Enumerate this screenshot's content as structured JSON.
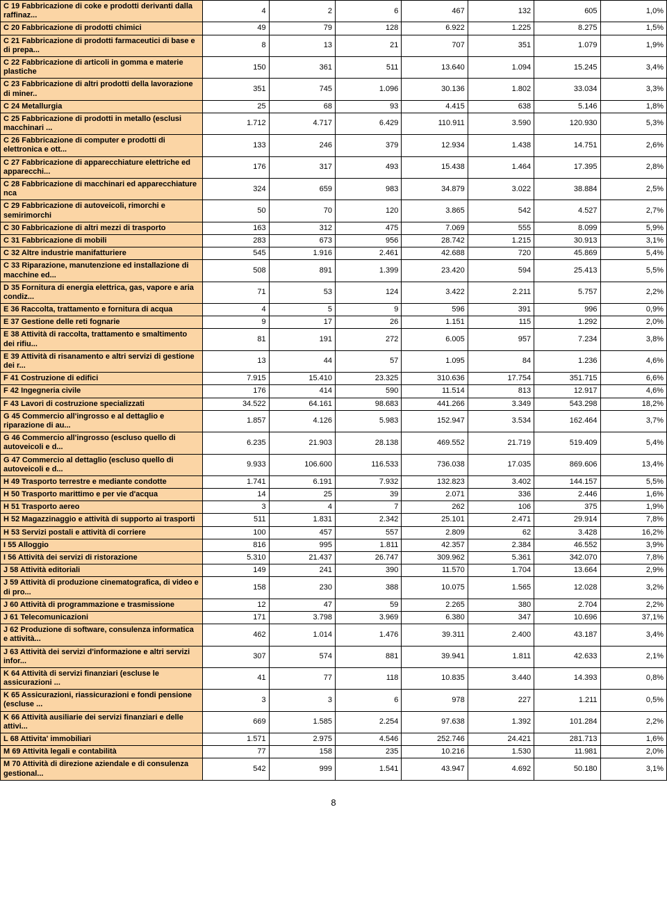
{
  "footer": "8",
  "colors": {
    "label_bg": "#fbd5a5",
    "border": "#000000",
    "text": "#000000"
  },
  "structure": {
    "type": "table",
    "columns": 8,
    "label_col": 0
  },
  "rows": [
    {
      "label": "C 19 Fabbricazione di coke e prodotti derivanti dalla raffinaz...",
      "v": [
        "4",
        "2",
        "6",
        "467",
        "132",
        "605",
        "1,0%"
      ]
    },
    {
      "label": "C 20 Fabbricazione di prodotti chimici",
      "v": [
        "49",
        "79",
        "128",
        "6.922",
        "1.225",
        "8.275",
        "1,5%"
      ]
    },
    {
      "label": "C 21 Fabbricazione di prodotti farmaceutici di base e di prepa...",
      "v": [
        "8",
        "13",
        "21",
        "707",
        "351",
        "1.079",
        "1,9%"
      ]
    },
    {
      "label": "C 22 Fabbricazione di articoli in gomma e materie plastiche",
      "v": [
        "150",
        "361",
        "511",
        "13.640",
        "1.094",
        "15.245",
        "3,4%"
      ]
    },
    {
      "label": "C 23 Fabbricazione di altri prodotti della lavorazione di miner..",
      "v": [
        "351",
        "745",
        "1.096",
        "30.136",
        "1.802",
        "33.034",
        "3,3%"
      ]
    },
    {
      "label": "C 24 Metallurgia",
      "v": [
        "25",
        "68",
        "93",
        "4.415",
        "638",
        "5.146",
        "1,8%"
      ]
    },
    {
      "label": "C 25 Fabbricazione di prodotti in metallo (esclusi macchinari ...",
      "v": [
        "1.712",
        "4.717",
        "6.429",
        "110.911",
        "3.590",
        "120.930",
        "5,3%"
      ]
    },
    {
      "label": "C 26 Fabbricazione di computer e prodotti di elettronica e ott...",
      "v": [
        "133",
        "246",
        "379",
        "12.934",
        "1.438",
        "14.751",
        "2,6%"
      ]
    },
    {
      "label": "C 27 Fabbricazione di apparecchiature elettriche ed apparecchi...",
      "v": [
        "176",
        "317",
        "493",
        "15.438",
        "1.464",
        "17.395",
        "2,8%"
      ]
    },
    {
      "label": "C 28 Fabbricazione di macchinari ed apparecchiature nca",
      "v": [
        "324",
        "659",
        "983",
        "34.879",
        "3.022",
        "38.884",
        "2,5%"
      ]
    },
    {
      "label": "C 29 Fabbricazione di autoveicoli, rimorchi e semirimorchi",
      "v": [
        "50",
        "70",
        "120",
        "3.865",
        "542",
        "4.527",
        "2,7%"
      ]
    },
    {
      "label": "C 30 Fabbricazione di altri mezzi di trasporto",
      "v": [
        "163",
        "312",
        "475",
        "7.069",
        "555",
        "8.099",
        "5,9%"
      ]
    },
    {
      "label": "C 31 Fabbricazione di mobili",
      "v": [
        "283",
        "673",
        "956",
        "28.742",
        "1.215",
        "30.913",
        "3,1%"
      ]
    },
    {
      "label": "C 32 Altre industrie manifatturiere",
      "v": [
        "545",
        "1.916",
        "2.461",
        "42.688",
        "720",
        "45.869",
        "5,4%"
      ]
    },
    {
      "label": "C 33 Riparazione, manutenzione ed installazione di macchine ed...",
      "v": [
        "508",
        "891",
        "1.399",
        "23.420",
        "594",
        "25.413",
        "5,5%"
      ]
    },
    {
      "label": "D 35 Fornitura di energia elettrica, gas, vapore e aria condiz...",
      "v": [
        "71",
        "53",
        "124",
        "3.422",
        "2.211",
        "5.757",
        "2,2%"
      ]
    },
    {
      "label": "E 36 Raccolta, trattamento e fornitura di acqua",
      "v": [
        "4",
        "5",
        "9",
        "596",
        "391",
        "996",
        "0,9%"
      ]
    },
    {
      "label": "E 37 Gestione delle reti fognarie",
      "v": [
        "9",
        "17",
        "26",
        "1.151",
        "115",
        "1.292",
        "2,0%"
      ]
    },
    {
      "label": "E 38 Attività di raccolta, trattamento e smaltimento dei rifiu...",
      "v": [
        "81",
        "191",
        "272",
        "6.005",
        "957",
        "7.234",
        "3,8%"
      ]
    },
    {
      "label": "E 39 Attività di risanamento e altri servizi di gestione dei r...",
      "v": [
        "13",
        "44",
        "57",
        "1.095",
        "84",
        "1.236",
        "4,6%"
      ]
    },
    {
      "label": "F 41 Costruzione di edifici",
      "v": [
        "7.915",
        "15.410",
        "23.325",
        "310.636",
        "17.754",
        "351.715",
        "6,6%"
      ]
    },
    {
      "label": "F 42 Ingegneria civile",
      "v": [
        "176",
        "414",
        "590",
        "11.514",
        "813",
        "12.917",
        "4,6%"
      ]
    },
    {
      "label": "F 43 Lavori di costruzione specializzati",
      "v": [
        "34.522",
        "64.161",
        "98.683",
        "441.266",
        "3.349",
        "543.298",
        "18,2%"
      ]
    },
    {
      "label": "G 45 Commercio all'ingrosso e al dettaglio e riparazione di au...",
      "v": [
        "1.857",
        "4.126",
        "5.983",
        "152.947",
        "3.534",
        "162.464",
        "3,7%"
      ]
    },
    {
      "label": "G 46 Commercio all'ingrosso (escluso quello di autoveicoli e d...",
      "v": [
        "6.235",
        "21.903",
        "28.138",
        "469.552",
        "21.719",
        "519.409",
        "5,4%"
      ]
    },
    {
      "label": "G 47 Commercio al dettaglio (escluso quello di autoveicoli e d...",
      "v": [
        "9.933",
        "106.600",
        "116.533",
        "736.038",
        "17.035",
        "869.606",
        "13,4%"
      ]
    },
    {
      "label": "H 49 Trasporto terrestre e mediante condotte",
      "v": [
        "1.741",
        "6.191",
        "7.932",
        "132.823",
        "3.402",
        "144.157",
        "5,5%"
      ]
    },
    {
      "label": "H 50 Trasporto marittimo e per vie d'acqua",
      "v": [
        "14",
        "25",
        "39",
        "2.071",
        "336",
        "2.446",
        "1,6%"
      ]
    },
    {
      "label": "H 51 Trasporto aereo",
      "v": [
        "3",
        "4",
        "7",
        "262",
        "106",
        "375",
        "1,9%"
      ]
    },
    {
      "label": "H 52 Magazzinaggio e attività di supporto ai trasporti",
      "v": [
        "511",
        "1.831",
        "2.342",
        "25.101",
        "2.471",
        "29.914",
        "7,8%"
      ]
    },
    {
      "label": "H 53 Servizi postali e attività di corriere",
      "v": [
        "100",
        "457",
        "557",
        "2.809",
        "62",
        "3.428",
        "16,2%"
      ]
    },
    {
      "label": "I 55 Alloggio",
      "v": [
        "816",
        "995",
        "1.811",
        "42.357",
        "2.384",
        "46.552",
        "3,9%"
      ]
    },
    {
      "label": "I 56 Attività dei servizi di ristorazione",
      "v": [
        "5.310",
        "21.437",
        "26.747",
        "309.962",
        "5.361",
        "342.070",
        "7,8%"
      ]
    },
    {
      "label": "J 58 Attività editoriali",
      "v": [
        "149",
        "241",
        "390",
        "11.570",
        "1.704",
        "13.664",
        "2,9%"
      ]
    },
    {
      "label": "J 59 Attività di produzione cinematografica, di video e di pro...",
      "v": [
        "158",
        "230",
        "388",
        "10.075",
        "1.565",
        "12.028",
        "3,2%"
      ]
    },
    {
      "label": "J 60 Attività di programmazione e trasmissione",
      "v": [
        "12",
        "47",
        "59",
        "2.265",
        "380",
        "2.704",
        "2,2%"
      ]
    },
    {
      "label": "J 61 Telecomunicazioni",
      "v": [
        "171",
        "3.798",
        "3.969",
        "6.380",
        "347",
        "10.696",
        "37,1%"
      ]
    },
    {
      "label": "J 62 Produzione di software, consulenza informatica e attività...",
      "v": [
        "462",
        "1.014",
        "1.476",
        "39.311",
        "2.400",
        "43.187",
        "3,4%"
      ]
    },
    {
      "label": "J 63 Attività dei servizi d'informazione e altri servizi infor...",
      "v": [
        "307",
        "574",
        "881",
        "39.941",
        "1.811",
        "42.633",
        "2,1%"
      ]
    },
    {
      "label": "K 64 Attività di servizi finanziari (escluse le assicurazioni ...",
      "v": [
        "41",
        "77",
        "118",
        "10.835",
        "3.440",
        "14.393",
        "0,8%"
      ]
    },
    {
      "label": "K 65 Assicurazioni, riassicurazioni e fondi pensione (escluse ...",
      "v": [
        "3",
        "3",
        "6",
        "978",
        "227",
        "1.211",
        "0,5%"
      ]
    },
    {
      "label": "K 66 Attività ausiliarie dei servizi finanziari e delle attivi...",
      "v": [
        "669",
        "1.585",
        "2.254",
        "97.638",
        "1.392",
        "101.284",
        "2,2%"
      ]
    },
    {
      "label": "L 68 Attivita' immobiliari",
      "v": [
        "1.571",
        "2.975",
        "4.546",
        "252.746",
        "24.421",
        "281.713",
        "1,6%"
      ]
    },
    {
      "label": "M 69 Attività legali e contabilità",
      "v": [
        "77",
        "158",
        "235",
        "10.216",
        "1.530",
        "11.981",
        "2,0%"
      ]
    },
    {
      "label": "M 70 Attività di direzione aziendale e di consulenza gestional...",
      "v": [
        "542",
        "999",
        "1.541",
        "43.947",
        "4.692",
        "50.180",
        "3,1%"
      ]
    }
  ]
}
